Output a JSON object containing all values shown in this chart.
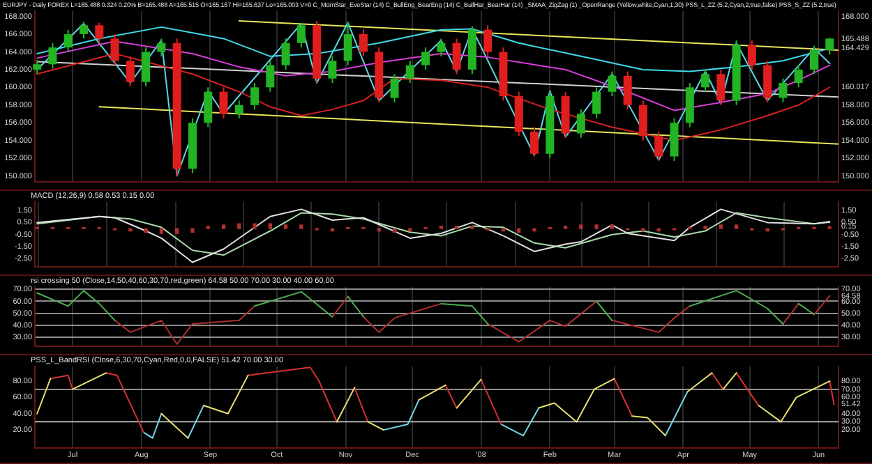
{
  "chart_data": [
    {
      "type": "candlestick",
      "title": "EURJPY - Daily  FOREX  L=165.488  0.324  0.20%  B=165.488  A=165.515  O=165.167  Hi=165.637  Lo=165.003  V=0  C_MornStar_EveStar (14)  C_BullEng_BearEng (14)  C_BullHar_BearHar (14)  _SMAA_ZigZag (1)  _OpenRange (Yellow,white,Cyan,1,30)  PSS_L_ZZ (5.2,Cyan,2,true,false)  PSS_S_ZZ (5.2,true)",
      "x": [
        "2007-06-15",
        "2007-06-22",
        "2007-06-29",
        "2007-07-06",
        "2007-07-13",
        "2007-07-20",
        "2007-07-27",
        "2007-08-03",
        "2007-08-10",
        "2007-08-17",
        "2007-08-24",
        "2007-08-31",
        "2007-09-07",
        "2007-09-14",
        "2007-09-21",
        "2007-09-28",
        "2007-10-05",
        "2007-10-12",
        "2007-10-19",
        "2007-10-26",
        "2007-11-02",
        "2007-11-09",
        "2007-11-16",
        "2007-11-23",
        "2007-11-30",
        "2007-12-07",
        "2007-12-14",
        "2007-12-21",
        "2007-12-28",
        "2008-01-04",
        "2008-01-11",
        "2008-01-18",
        "2008-01-25",
        "2008-02-01",
        "2008-02-08",
        "2008-02-15",
        "2008-02-22",
        "2008-02-29",
        "2008-03-07",
        "2008-03-14",
        "2008-03-21",
        "2008-03-28",
        "2008-04-04",
        "2008-04-11",
        "2008-04-18",
        "2008-04-25",
        "2008-05-02",
        "2008-05-09",
        "2008-05-16",
        "2008-05-23",
        "2008-05-30",
        "2008-06-06"
      ],
      "ohlc": [
        [
          162.0,
          163.1,
          161.5,
          162.6
        ],
        [
          162.6,
          165.0,
          162.1,
          164.5
        ],
        [
          164.5,
          166.5,
          164.0,
          166.0
        ],
        [
          166.0,
          167.4,
          165.5,
          167.0
        ],
        [
          167.0,
          167.3,
          165.0,
          165.5
        ],
        [
          165.5,
          166.0,
          162.5,
          163.0
        ],
        [
          163.0,
          163.5,
          160.1,
          160.6
        ],
        [
          160.6,
          164.5,
          160.1,
          164.0
        ],
        [
          164.0,
          165.5,
          163.5,
          165.0
        ],
        [
          165.0,
          165.5,
          150.0,
          150.8
        ],
        [
          150.8,
          156.5,
          150.3,
          156.0
        ],
        [
          156.0,
          160.0,
          155.5,
          159.5
        ],
        [
          159.5,
          160.0,
          156.5,
          157.0
        ],
        [
          157.0,
          158.5,
          156.5,
          158.0
        ],
        [
          158.0,
          160.5,
          157.5,
          160.0
        ],
        [
          160.0,
          163.0,
          159.5,
          162.5
        ],
        [
          162.5,
          165.5,
          162.0,
          165.0
        ],
        [
          165.0,
          167.3,
          164.5,
          167.0
        ],
        [
          167.0,
          167.5,
          160.5,
          161.0
        ],
        [
          161.0,
          163.5,
          160.5,
          163.0
        ],
        [
          163.0,
          167.4,
          162.5,
          166.0
        ],
        [
          166.0,
          166.5,
          163.5,
          164.0
        ],
        [
          164.0,
          164.5,
          158.3,
          158.8
        ],
        [
          158.8,
          161.5,
          158.3,
          161.0
        ],
        [
          161.0,
          163.0,
          160.5,
          162.5
        ],
        [
          162.5,
          164.5,
          162.0,
          164.0
        ],
        [
          164.0,
          165.5,
          163.5,
          165.0
        ],
        [
          165.0,
          165.5,
          161.5,
          162.0
        ],
        [
          162.0,
          166.9,
          161.5,
          166.5
        ],
        [
          166.5,
          167.0,
          163.5,
          164.0
        ],
        [
          164.0,
          164.5,
          158.5,
          159.0
        ],
        [
          159.0,
          159.5,
          154.5,
          155.0
        ],
        [
          155.0,
          155.5,
          152.2,
          152.5
        ],
        [
          152.5,
          159.5,
          152.0,
          159.0
        ],
        [
          159.0,
          159.5,
          154.3,
          154.8
        ],
        [
          154.8,
          157.5,
          154.3,
          157.0
        ],
        [
          157.0,
          160.0,
          156.5,
          159.5
        ],
        [
          159.5,
          161.8,
          159.0,
          161.3
        ],
        [
          161.3,
          161.8,
          157.5,
          158.0
        ],
        [
          158.0,
          158.5,
          154.0,
          154.5
        ],
        [
          154.5,
          155.0,
          151.8,
          152.2
        ],
        [
          152.2,
          156.5,
          151.7,
          156.0
        ],
        [
          156.0,
          160.5,
          155.5,
          160.0
        ],
        [
          160.0,
          162.0,
          159.5,
          161.5
        ],
        [
          161.5,
          162.0,
          158.0,
          158.5
        ],
        [
          158.5,
          165.3,
          158.0,
          164.8
        ],
        [
          164.8,
          165.3,
          162.0,
          162.5
        ],
        [
          162.5,
          163.0,
          158.3,
          158.8
        ],
        [
          158.8,
          161.0,
          158.3,
          160.5
        ],
        [
          160.5,
          162.5,
          160.0,
          162.0
        ],
        [
          162.0,
          164.7,
          161.5,
          164.2
        ],
        [
          164.2,
          165.6,
          163.7,
          165.5
        ]
      ],
      "colors": [
        "#22b422",
        "#22b422",
        "#22b422",
        "#22b422",
        "#e01e1e",
        "#e01e1e",
        "#e01e1e",
        "#22b422",
        "#22b422",
        "#e01e1e",
        "#22b422",
        "#22b422",
        "#e01e1e",
        "#22b422",
        "#22b422",
        "#22b422",
        "#22b422",
        "#22b422",
        "#e01e1e",
        "#22b422",
        "#22b422",
        "#e01e1e",
        "#e01e1e",
        "#22b422",
        "#22b422",
        "#22b422",
        "#22b422",
        "#e01e1e",
        "#22b422",
        "#e01e1e",
        "#e01e1e",
        "#e01e1e",
        "#e01e1e",
        "#22b422",
        "#e01e1e",
        "#22b422",
        "#22b422",
        "#22b422",
        "#e01e1e",
        "#e01e1e",
        "#e01e1e",
        "#22b422",
        "#22b422",
        "#22b422",
        "#e01e1e",
        "#22b422",
        "#e01e1e",
        "#e01e1e",
        "#22b422",
        "#22b422",
        "#22b422",
        "#22b422"
      ],
      "series": [
        {
          "type": "line",
          "color": "#3fd8e8",
          "x": [
            "2007-06-15",
            "2007-07-13",
            "2007-08-10",
            "2007-09-07",
            "2007-09-28",
            "2007-10-19",
            "2007-11-16",
            "2007-12-14",
            "2007-12-28",
            "2008-01-18",
            "2008-02-15",
            "2008-03-14",
            "2008-04-04",
            "2008-04-25",
            "2008-05-16",
            "2008-06-06"
          ],
          "values": [
            163.8,
            165.5,
            166.8,
            165.5,
            163.5,
            163.8,
            165.0,
            166.5,
            166.6,
            165.0,
            163.5,
            162.0,
            161.8,
            162.3,
            163.0,
            164.4
          ]
        },
        {
          "type": "line",
          "color": "#d63fd6",
          "x": [
            "2007-06-15",
            "2007-07-20",
            "2007-08-24",
            "2007-09-14",
            "2007-10-05",
            "2007-10-26",
            "2007-11-16",
            "2007-12-14",
            "2008-01-04",
            "2008-02-08",
            "2008-03-07",
            "2008-03-28",
            "2008-04-18",
            "2008-05-09",
            "2008-05-23",
            "2008-06-06"
          ],
          "values": [
            163.3,
            165.2,
            163.8,
            162.3,
            161.3,
            161.8,
            162.8,
            163.8,
            163.4,
            162.0,
            159.5,
            157.4,
            158.3,
            159.3,
            160.8,
            162.5
          ]
        },
        {
          "type": "line",
          "color": "#d42020",
          "x": [
            "2007-06-15",
            "2007-07-20",
            "2007-08-24",
            "2007-09-14",
            "2007-09-28",
            "2007-10-12",
            "2007-10-26",
            "2007-11-09",
            "2007-11-23",
            "2007-12-14",
            "2008-01-04",
            "2008-02-01",
            "2008-02-29",
            "2008-03-28",
            "2008-04-18",
            "2008-05-09",
            "2008-05-23",
            "2008-06-06"
          ],
          "values": [
            161.5,
            163.8,
            161.5,
            159.5,
            157.8,
            156.8,
            157.5,
            158.5,
            161.0,
            160.8,
            160.0,
            157.5,
            155.5,
            154.0,
            155.2,
            156.8,
            158.0,
            160.0
          ]
        },
        {
          "type": "line",
          "color": "#5ad8e6",
          "x": [
            "2007-06-15",
            "2007-07-06",
            "2007-07-27",
            "2007-08-10",
            "2007-08-17",
            "2007-08-31",
            "2007-09-07",
            "2007-10-12",
            "2007-10-19",
            "2007-11-02",
            "2007-11-16",
            "2007-12-14",
            "2007-12-21",
            "2007-12-28",
            "2008-01-25",
            "2008-02-01",
            "2008-02-08",
            "2008-02-29",
            "2008-03-21",
            "2008-04-11",
            "2008-04-18",
            "2008-04-25",
            "2008-05-09",
            "2008-05-30",
            "2008-06-06"
          ],
          "values": [
            162.0,
            167.2,
            160.5,
            165.3,
            150.0,
            159.6,
            157.0,
            167.2,
            160.5,
            167.3,
            158.5,
            165.3,
            161.8,
            166.6,
            152.3,
            159.6,
            154.4,
            161.5,
            151.8,
            161.8,
            158.2,
            165.0,
            158.5,
            164.4,
            162.7
          ]
        },
        {
          "type": "line",
          "color": "#e6e65a",
          "x": [
            "2007-09-14",
            "2008-06-10"
          ],
          "values": [
            167.5,
            164.2
          ]
        },
        {
          "type": "line",
          "color": "#e6e65a",
          "x": [
            "2007-07-13",
            "2008-06-10"
          ],
          "values": [
            157.8,
            153.6
          ]
        },
        {
          "type": "line",
          "color": "#d0d0d0",
          "x": [
            "2007-06-15",
            "2008-06-10"
          ],
          "values": [
            162.9,
            158.9
          ]
        }
      ],
      "xlim": [
        "2007-06-14",
        "2008-06-10"
      ],
      "xticks": [
        {
          "value": "2007-07-01",
          "label": null
        },
        {
          "value": "2007-08-01",
          "label": null
        },
        {
          "value": "2007-09-01",
          "label": null
        },
        {
          "value": "2007-10-01",
          "label": null
        },
        {
          "value": "2007-11-01",
          "label": null
        },
        {
          "value": "2007-12-01",
          "label": null
        },
        {
          "value": "2008-01-01",
          "label": null
        },
        {
          "value": "2008-02-01",
          "label": null
        },
        {
          "value": "2008-03-01",
          "label": null
        },
        {
          "value": "2008-04-01",
          "label": null
        },
        {
          "value": "2008-05-01",
          "label": null
        },
        {
          "value": "2008-06-01",
          "label": null
        }
      ],
      "ylim": [
        149.3,
        168.6
      ],
      "yticks": [
        {
          "value": 150,
          "label": "150.000"
        },
        {
          "value": 152,
          "label": "152.000"
        },
        {
          "value": 154,
          "label": "154.000"
        },
        {
          "value": 156,
          "label": "156.000"
        },
        {
          "value": 158,
          "label": "158.000"
        },
        {
          "value": 160,
          "label": "160.000"
        },
        {
          "value": 162,
          "label": "162.000"
        },
        {
          "value": 164,
          "label": "164.000"
        },
        {
          "value": 166,
          "label": "166.000"
        },
        {
          "value": 168,
          "label": "168.000"
        }
      ],
      "y2lim": [
        149.3,
        168.6
      ],
      "y2ticks": [
        {
          "value": 150,
          "label": "150.000"
        },
        {
          "value": 152,
          "label": "152.000"
        },
        {
          "value": 154,
          "label": "154.000"
        },
        {
          "value": 156,
          "label": "156.000"
        },
        {
          "value": 158,
          "label": "158.000"
        },
        {
          "value": 160.017,
          "label": "160.017"
        },
        {
          "value": 164.429,
          "label": "164.429"
        },
        {
          "value": 165.488,
          "label": "165.488"
        },
        {
          "value": 168,
          "label": "168.000"
        }
      ],
      "tick_labels": "y",
      "grid": "x"
    },
    {
      "type": "line",
      "subtitle": "MACD (12,26,9)  0.58  0.53  0.15  0.00",
      "series": [
        {
          "type": "bar",
          "color": "#b03030",
          "x": [
            "2007-06-15",
            "2007-06-22",
            "2007-06-29",
            "2007-07-06",
            "2007-07-13",
            "2007-07-20",
            "2007-07-27",
            "2007-08-03",
            "2007-08-10",
            "2007-08-17",
            "2007-08-24",
            "2007-08-31",
            "2007-09-07",
            "2007-09-14",
            "2007-09-21",
            "2007-09-28",
            "2007-10-05",
            "2007-10-12",
            "2007-10-19",
            "2007-10-26",
            "2007-11-02",
            "2007-11-09",
            "2007-11-16",
            "2007-11-23",
            "2007-11-30",
            "2007-12-07",
            "2007-12-14",
            "2007-12-21",
            "2007-12-28",
            "2008-01-04",
            "2008-01-11",
            "2008-01-18",
            "2008-01-25",
            "2008-02-01",
            "2008-02-08",
            "2008-02-15",
            "2008-02-22",
            "2008-02-29",
            "2008-03-07",
            "2008-03-14",
            "2008-03-21",
            "2008-03-28",
            "2008-04-04",
            "2008-04-11",
            "2008-04-18",
            "2008-04-25",
            "2008-05-02",
            "2008-05-09",
            "2008-05-16",
            "2008-05-23",
            "2008-05-30",
            "2008-06-06"
          ],
          "values": [
            0.1,
            0.1,
            0.1,
            0.1,
            0.1,
            -0.1,
            -0.2,
            -0.3,
            -0.4,
            -0.4,
            -0.3,
            0.2,
            0.3,
            0.4,
            0.4,
            0.4,
            0.3,
            0.3,
            -0.1,
            -0.2,
            0.1,
            0.1,
            -0.2,
            -0.3,
            -0.2,
            0.1,
            0.2,
            0.2,
            0.2,
            -0.1,
            -0.2,
            -0.3,
            -0.2,
            0.1,
            0.2,
            0.3,
            0.3,
            0.3,
            -0.1,
            -0.2,
            -0.2,
            -0.1,
            0.1,
            0.2,
            0.3,
            0.3,
            -0.1,
            -0.2,
            -0.1,
            0.1,
            0.1,
            0.15
          ]
        },
        {
          "type": "line",
          "color": "#e0e0e0",
          "x": [
            "2007-06-15",
            "2007-07-13",
            "2007-07-20",
            "2007-08-03",
            "2007-08-10",
            "2007-08-24",
            "2007-09-07",
            "2007-09-28",
            "2007-10-12",
            "2007-10-26",
            "2007-11-09",
            "2007-11-30",
            "2007-12-14",
            "2007-12-28",
            "2008-01-11",
            "2008-01-25",
            "2008-02-08",
            "2008-02-15",
            "2008-02-29",
            "2008-03-07",
            "2008-03-28",
            "2008-04-04",
            "2008-04-18",
            "2008-05-09",
            "2008-05-30",
            "2008-06-06"
          ],
          "values": [
            0.5,
            1.0,
            0.9,
            -0.2,
            -0.8,
            -2.8,
            -1.7,
            1.0,
            1.6,
            0.7,
            0.9,
            -0.8,
            -0.4,
            0.5,
            -0.6,
            -1.9,
            -1.3,
            -1.1,
            0.3,
            -0.4,
            -1.0,
            0.1,
            1.6,
            0.5,
            0.4,
            0.58
          ]
        },
        {
          "type": "line",
          "color": "#a8d8a8",
          "x": [
            "2007-06-15",
            "2007-07-13",
            "2007-07-27",
            "2007-08-10",
            "2007-08-24",
            "2007-09-07",
            "2007-09-28",
            "2007-10-12",
            "2007-10-26",
            "2007-11-09",
            "2007-11-30",
            "2007-12-14",
            "2007-12-28",
            "2008-01-11",
            "2008-01-25",
            "2008-02-08",
            "2008-02-29",
            "2008-03-14",
            "2008-03-28",
            "2008-04-11",
            "2008-04-25",
            "2008-05-09",
            "2008-05-30",
            "2008-06-06"
          ],
          "values": [
            0.4,
            1.0,
            0.8,
            0.1,
            -1.8,
            -2.2,
            -0.2,
            1.3,
            1.2,
            0.8,
            -0.3,
            -0.6,
            0.2,
            0.1,
            -1.2,
            -1.6,
            -0.5,
            -0.2,
            -0.7,
            -0.2,
            1.3,
            0.9,
            0.4,
            0.53
          ]
        }
      ],
      "xlim": [
        "2007-06-14",
        "2008-06-10"
      ],
      "xticks": [
        {
          "value": "2007-07-01",
          "label": null
        },
        {
          "value": "2007-08-01",
          "label": null
        },
        {
          "value": "2007-09-01",
          "label": null
        },
        {
          "value": "2007-10-01",
          "label": null
        },
        {
          "value": "2007-11-01",
          "label": null
        },
        {
          "value": "2007-12-01",
          "label": null
        },
        {
          "value": "2008-01-01",
          "label": null
        },
        {
          "value": "2008-02-01",
          "label": null
        },
        {
          "value": "2008-03-01",
          "label": null
        },
        {
          "value": "2008-04-01",
          "label": null
        },
        {
          "value": "2008-05-01",
          "label": null
        },
        {
          "value": "2008-06-01",
          "label": null
        }
      ],
      "ylim": [
        -3.2,
        2.2
      ],
      "yticks": [
        {
          "value": -2.5,
          "label": "-2.50"
        },
        {
          "value": -1.5,
          "label": "-1.50"
        },
        {
          "value": -0.5,
          "label": "-0.50"
        },
        {
          "value": 0.5,
          "label": "0.50"
        },
        {
          "value": 1.5,
          "label": "1.50"
        }
      ],
      "y2lim": [
        -3.2,
        2.2
      ],
      "y2ticks": [
        {
          "value": -2.5,
          "label": "-2.50"
        },
        {
          "value": -1.5,
          "label": "-1.50"
        },
        {
          "value": -0.5,
          "label": "-0.50"
        },
        {
          "value": 0.15,
          "label": "0.15"
        },
        {
          "value": 0.5,
          "label": "0.50"
        },
        {
          "value": 1.5,
          "label": "1.50"
        }
      ],
      "tick_labels": "y",
      "grid": "x"
    },
    {
      "type": "line",
      "subtitle": "rsi crossing 50 (Close,14,50,40,60,30,70,red,green)  64.58  50.00  70.00  30.00  40.00  60.00",
      "series": [
        {
          "type": "line",
          "color": "#4caf50",
          "x": [
            "2007-06-15",
            "2007-06-29",
            "2007-07-06",
            "2007-07-13",
            "2007-07-20",
            "2007-07-21",
            "2007-09-21",
            "2007-10-12",
            "2007-10-26",
            "2007-10-27",
            "2007-11-02",
            "2007-11-09",
            "2007-11-10",
            "2007-12-14",
            "2007-12-28",
            "2008-01-04",
            "2008-01-05",
            "2008-02-22",
            "2008-02-29",
            "2008-03-01",
            "2008-04-04",
            "2008-04-25",
            "2008-05-09",
            "2008-05-16",
            "2008-05-17",
            "2008-05-23",
            "2008-05-30"
          ],
          "values": [
            67,
            56,
            69,
            58,
            44,
            null,
            56,
            68,
            47,
            null,
            64,
            47,
            null,
            58,
            56,
            41,
            null,
            60,
            44,
            null,
            56,
            69,
            54,
            41,
            null,
            58,
            49
          ]
        },
        {
          "type": "line",
          "color": "#b03030",
          "x": [
            "2007-07-20",
            "2007-07-27",
            "2007-08-10",
            "2007-08-17",
            "2007-08-24",
            "2007-09-14",
            "2007-09-21",
            "2007-09-22",
            "2007-10-26",
            "2007-11-02",
            "2007-11-03",
            "2007-11-09",
            "2007-11-16",
            "2007-11-23",
            "2007-12-14",
            "2007-12-15",
            "2008-01-04",
            "2008-01-18",
            "2008-02-01",
            "2008-02-08",
            "2008-02-22",
            "2008-02-23",
            "2008-02-29",
            "2008-03-21",
            "2008-03-28",
            "2008-04-04",
            "2008-04-05",
            "2008-05-16",
            "2008-05-23",
            "2008-05-24",
            "2008-05-30",
            "2008-06-06"
          ],
          "values": [
            44,
            34,
            44,
            24,
            41,
            44,
            56,
            null,
            47,
            64,
            null,
            47,
            34,
            46,
            58,
            null,
            41,
            26,
            44,
            39,
            60,
            null,
            44,
            34,
            46,
            56,
            null,
            41,
            58,
            null,
            49,
            64.58
          ]
        }
      ],
      "xlim": [
        "2007-06-14",
        "2008-06-10"
      ],
      "xticks": [
        {
          "value": "2007-07-01",
          "label": null
        },
        {
          "value": "2007-08-01",
          "label": null
        },
        {
          "value": "2007-09-01",
          "label": null
        },
        {
          "value": "2007-10-01",
          "label": null
        },
        {
          "value": "2007-11-01",
          "label": null
        },
        {
          "value": "2007-12-01",
          "label": null
        },
        {
          "value": "2008-01-01",
          "label": null
        },
        {
          "value": "2008-02-01",
          "label": null
        },
        {
          "value": "2008-03-01",
          "label": null
        },
        {
          "value": "2008-04-01",
          "label": null
        },
        {
          "value": "2008-05-01",
          "label": null
        },
        {
          "value": "2008-06-01",
          "label": null
        }
      ],
      "ylim": [
        22,
        72
      ],
      "yticks": [
        {
          "value": 30,
          "label": "30.00"
        },
        {
          "value": 40,
          "label": "40.00"
        },
        {
          "value": 50,
          "label": "50.00"
        },
        {
          "value": 60,
          "label": "60.00"
        },
        {
          "value": 70,
          "label": "70.00"
        }
      ],
      "y2lim": [
        22,
        72
      ],
      "y2ticks": [
        {
          "value": 30,
          "label": "30.00"
        },
        {
          "value": 40,
          "label": "40.00"
        },
        {
          "value": 50,
          "label": "50.00"
        },
        {
          "value": 60,
          "label": "60.00"
        },
        {
          "value": 64.58,
          "label": "64.58"
        },
        {
          "value": 70,
          "label": "70.00"
        }
      ],
      "tick_labels": "y",
      "grid": true
    },
    {
      "type": "line",
      "subtitle": "PSS_L_BandRSI (Close,6,30,70,Cyan,Red,0,0,FALSE)  51.42  70.00  30.00",
      "series": [
        {
          "type": "line",
          "color": "#e8e070",
          "x": [
            "2007-06-15",
            "2007-06-21",
            "2007-06-22",
            "2007-07-01",
            "2007-07-16",
            "2007-07-17",
            "2007-08-10",
            "2007-08-22",
            "2007-08-23",
            "2007-08-29",
            "2007-09-09",
            "2007-09-18",
            "2007-09-19",
            "2007-10-28",
            "2007-11-05",
            "2007-11-06",
            "2007-11-11",
            "2007-11-18",
            "2007-11-19",
            "2007-12-04",
            "2007-12-16",
            "2007-12-17",
            "2007-12-21",
            "2008-01-01",
            "2008-01-02",
            "2008-01-27",
            "2008-02-03",
            "2008-02-13",
            "2008-02-21",
            "2008-03-01",
            "2008-03-02",
            "2008-03-09",
            "2008-03-16",
            "2008-03-24",
            "2008-03-25",
            "2008-04-03",
            "2008-04-14",
            "2008-04-15",
            "2008-04-19",
            "2008-04-25",
            "2008-04-26",
            "2008-05-05",
            "2008-05-15",
            "2008-05-22",
            "2008-06-06"
          ],
          "values": [
            40,
            83,
            null,
            70,
            90,
            null,
            40,
            10,
            null,
            50,
            40,
            87,
            null,
            30,
            72,
            null,
            30,
            20,
            null,
            57,
            75,
            null,
            47,
            82,
            null,
            47,
            53,
            30,
            70,
            83,
            null,
            37,
            35,
            13,
            null,
            67,
            90,
            null,
            70,
            90,
            null,
            50,
            30,
            60,
            80
          ]
        },
        {
          "type": "line",
          "color": "#d83030",
          "x": [
            "2007-06-21",
            "2007-06-29",
            "2007-07-01",
            "2007-07-02",
            "2007-07-16",
            "2007-07-21",
            "2007-08-02",
            "2007-08-03",
            "2007-09-18",
            "2007-10-16",
            "2007-10-20",
            "2007-10-28",
            "2007-10-29",
            "2007-11-05",
            "2007-11-11",
            "2007-11-12",
            "2007-12-16",
            "2007-12-21",
            "2007-12-22",
            "2008-01-01",
            "2008-01-10",
            "2008-01-11",
            "2008-03-01",
            "2008-03-09",
            "2008-03-10",
            "2008-04-14",
            "2008-04-19",
            "2008-04-20",
            "2008-04-25",
            "2008-05-05",
            "2008-05-06",
            "2008-06-06",
            "2008-06-08"
          ],
          "values": [
            83,
            87,
            70,
            null,
            90,
            87,
            17,
            null,
            87,
            97,
            80,
            30,
            null,
            72,
            30,
            null,
            75,
            47,
            null,
            82,
            27,
            null,
            83,
            37,
            null,
            90,
            70,
            null,
            90,
            50,
            null,
            80,
            51.42
          ]
        },
        {
          "type": "line",
          "color": "#70d8e8",
          "x": [
            "2007-08-02",
            "2007-08-06",
            "2007-08-10",
            "2007-08-11",
            "2007-08-22",
            "2007-08-29",
            "2007-08-30",
            "2007-11-18",
            "2007-11-29",
            "2007-12-04",
            "2007-12-05",
            "2008-01-10",
            "2008-01-20",
            "2008-01-27",
            "2008-01-28",
            "2008-03-24",
            "2008-04-03"
          ],
          "values": [
            17,
            10,
            40,
            null,
            10,
            50,
            null,
            20,
            27,
            57,
            null,
            27,
            13,
            47,
            null,
            13,
            67
          ]
        }
      ],
      "ref_lines": [
        {
          "axis": "y",
          "value": 70,
          "color": "#c8c8c8"
        },
        {
          "axis": "y",
          "value": 30,
          "color": "#c8c8c8"
        }
      ],
      "xlim": [
        "2007-06-14",
        "2008-06-10"
      ],
      "xticks": [
        {
          "value": "2007-07-01",
          "label": "Jul"
        },
        {
          "value": "2007-08-01",
          "label": "Aug"
        },
        {
          "value": "2007-09-01",
          "label": "Sep"
        },
        {
          "value": "2007-10-01",
          "label": "Oct"
        },
        {
          "value": "2007-11-01",
          "label": "Nov"
        },
        {
          "value": "2007-12-01",
          "label": "Dec"
        },
        {
          "value": "2008-01-01",
          "label": "'08"
        },
        {
          "value": "2008-02-01",
          "label": "Feb"
        },
        {
          "value": "2008-03-01",
          "label": "Mar"
        },
        {
          "value": "2008-04-01",
          "label": "Apr"
        },
        {
          "value": "2008-05-01",
          "label": "May"
        },
        {
          "value": "2008-06-01",
          "label": "Jun"
        }
      ],
      "ylim": [
        -2,
        98
      ],
      "yticks": [
        {
          "value": 20,
          "label": "20.00"
        },
        {
          "value": 40,
          "label": "40.00"
        },
        {
          "value": 60,
          "label": "60.00"
        },
        {
          "value": 80,
          "label": "80.00"
        }
      ],
      "y2lim": [
        -2,
        98
      ],
      "y2ticks": [
        {
          "value": 20,
          "label": "20.00"
        },
        {
          "value": 30,
          "label": "30.00"
        },
        {
          "value": 40,
          "label": "40.00"
        },
        {
          "value": 51.42,
          "label": "51.42"
        },
        {
          "value": 60,
          "label": "60.00"
        },
        {
          "value": 70,
          "label": "70.00"
        },
        {
          "value": 80,
          "label": "80.00"
        }
      ],
      "grid": "x"
    }
  ]
}
